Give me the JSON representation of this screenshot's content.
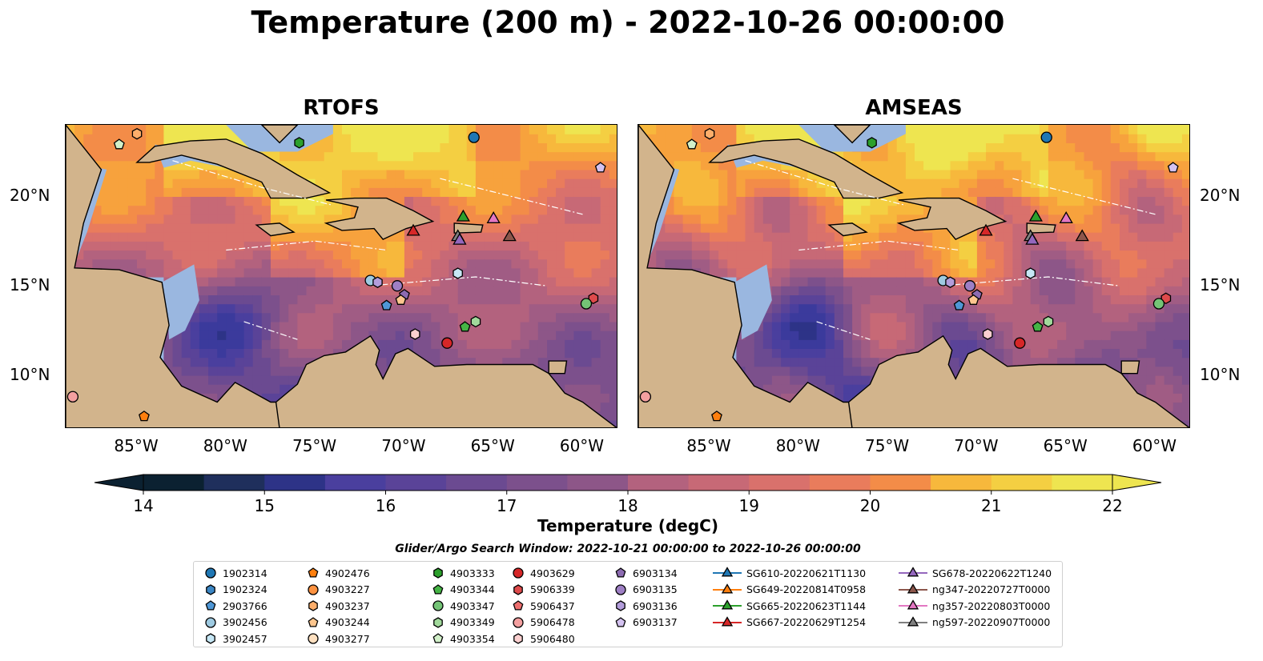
{
  "title": "Temperature (200 m) - 2022-10-26 00:00:00",
  "panels": [
    {
      "title": "RTOFS",
      "model": "rtofs"
    },
    {
      "title": "AMSEAS",
      "model": "amseas"
    }
  ],
  "axes": {
    "lon_ticks": [
      "85°W",
      "80°W",
      "75°W",
      "70°W",
      "65°W",
      "60°W"
    ],
    "lat_ticks": [
      "20°N",
      "15°N",
      "10°N"
    ],
    "extent": {
      "lon": [
        -89,
        -58
      ],
      "lat": [
        7,
        24
      ]
    }
  },
  "colorbar": {
    "label": "Temperature (degC)",
    "ticks": [
      "14",
      "15",
      "16",
      "17",
      "18",
      "19",
      "20",
      "21",
      "22"
    ],
    "range": [
      14,
      22
    ],
    "colors": [
      "#0b2131",
      "#1f2f5c",
      "#2d3387",
      "#3b3a9c",
      "#4a3f9e",
      "#5a4398",
      "#6b4a91",
      "#7c508c",
      "#8d5688",
      "#a05c84",
      "#b3627e",
      "#c76976",
      "#d9716c",
      "#e97c5c",
      "#f38c48",
      "#f7a23d",
      "#f7b83c",
      "#f4cf42",
      "#eee550"
    ]
  },
  "legend": {
    "title": "Glider/Argo Search Window: 2022-10-21 00:00:00 to 2022-10-26 00:00:00",
    "columns": [
      [
        {
          "label": "1902314",
          "marker": "circle",
          "color": "#1f77b4"
        },
        {
          "label": "1902324",
          "marker": "hexagon",
          "color": "#3b86c4"
        },
        {
          "label": "2903766",
          "marker": "pentagon",
          "color": "#4f97d6"
        },
        {
          "label": "3902456",
          "marker": "circle",
          "color": "#9ecae1"
        },
        {
          "label": "3902457",
          "marker": "hexagon",
          "color": "#c6e7f5"
        }
      ],
      [
        {
          "label": "4902476",
          "marker": "pentagon",
          "color": "#ff7f0e"
        },
        {
          "label": "4903227",
          "marker": "circle",
          "color": "#fd9240"
        },
        {
          "label": "4903237",
          "marker": "hexagon",
          "color": "#fdae6b"
        },
        {
          "label": "4903244",
          "marker": "pentagon",
          "color": "#fdc68e"
        },
        {
          "label": "4903277",
          "marker": "circle",
          "color": "#fee0c0"
        }
      ],
      [
        {
          "label": "4903333",
          "marker": "hexagon",
          "color": "#2ca02c"
        },
        {
          "label": "4903344",
          "marker": "pentagon",
          "color": "#45b445"
        },
        {
          "label": "4903347",
          "marker": "circle",
          "color": "#74c476"
        },
        {
          "label": "4903349",
          "marker": "hexagon",
          "color": "#a1d99b"
        },
        {
          "label": "4903354",
          "marker": "pentagon",
          "color": "#d2f0c9"
        }
      ],
      [
        {
          "label": "4903629",
          "marker": "circle",
          "color": "#d62728"
        },
        {
          "label": "5906339",
          "marker": "hexagon",
          "color": "#de4a4b"
        },
        {
          "label": "5906437",
          "marker": "pentagon",
          "color": "#ec6e6e"
        },
        {
          "label": "5906478",
          "marker": "circle",
          "color": "#f4a0a0"
        },
        {
          "label": "5906480",
          "marker": "hexagon",
          "color": "#fbd0d0"
        }
      ],
      [
        {
          "label": "6903134",
          "marker": "pentagon",
          "color": "#8c6bb1"
        },
        {
          "label": "6903135",
          "marker": "circle",
          "color": "#9e7fc4"
        },
        {
          "label": "6903136",
          "marker": "hexagon",
          "color": "#b39ddb"
        },
        {
          "label": "6903137",
          "marker": "pentagon",
          "color": "#d4c2f0"
        }
      ],
      [
        {
          "label": "SG610-20220621T1130",
          "marker": "triangle",
          "color": "#1f77b4"
        },
        {
          "label": "SG649-20220814T0958",
          "marker": "triangle",
          "color": "#ff7f0e"
        },
        {
          "label": "SG665-20220623T1144",
          "marker": "triangle",
          "color": "#2ca02c"
        },
        {
          "label": "SG667-20220629T1254",
          "marker": "triangle",
          "color": "#d62728"
        }
      ],
      [
        {
          "label": "SG678-20220622T1240",
          "marker": "triangle",
          "color": "#9467bd"
        },
        {
          "label": "ng347-20220727T0000",
          "marker": "triangle",
          "color": "#8c564b"
        },
        {
          "label": "ng357-20220803T0000",
          "marker": "triangle",
          "color": "#e377c2"
        },
        {
          "label": "ng597-20220907T0000",
          "marker": "triangle",
          "color": "#7f7f7f"
        }
      ]
    ]
  },
  "chart_data": {
    "type": "heatmap",
    "variable": "Temperature (degC)",
    "depth": "200 m",
    "time": "2022-10-26 00:00:00",
    "lon_range": [
      -89,
      -58
    ],
    "lat_range": [
      7,
      24
    ],
    "value_range": [
      14,
      22
    ],
    "models": [
      "RTOFS",
      "AMSEAS"
    ],
    "argo_floats": [
      {
        "id": "1902314",
        "lon": -66.1,
        "lat": 23.3
      },
      {
        "id": "4903354",
        "lon": -86.0,
        "lat": 22.9
      },
      {
        "id": "4903237",
        "lon": -85.0,
        "lat": 23.5
      },
      {
        "id": "4903333",
        "lon": -75.9,
        "lat": 23.0
      },
      {
        "id": "6903137",
        "lon": -59.0,
        "lat": 21.6
      },
      {
        "id": "3902457",
        "lon": -67.0,
        "lat": 15.7
      },
      {
        "id": "3902456",
        "lon": -71.9,
        "lat": 15.3
      },
      {
        "id": "6903136",
        "lon": -71.5,
        "lat": 15.2
      },
      {
        "id": "6903135",
        "lon": -70.4,
        "lat": 15.0
      },
      {
        "id": "6903134",
        "lon": -70.0,
        "lat": 14.5
      },
      {
        "id": "4903244",
        "lon": -70.2,
        "lat": 14.2
      },
      {
        "id": "2903766",
        "lon": -71.0,
        "lat": 13.9
      },
      {
        "id": "5906339",
        "lon": -59.4,
        "lat": 14.3
      },
      {
        "id": "4903347",
        "lon": -59.8,
        "lat": 14.0
      },
      {
        "id": "4903349",
        "lon": -66.0,
        "lat": 13.0
      },
      {
        "id": "4903344",
        "lon": -66.6,
        "lat": 12.7
      },
      {
        "id": "5906480",
        "lon": -69.4,
        "lat": 12.3
      },
      {
        "id": "4903629",
        "lon": -67.6,
        "lat": 11.8
      },
      {
        "id": "5906478",
        "lon": -88.6,
        "lat": 8.8
      },
      {
        "id": "4902476",
        "lon": -84.6,
        "lat": 7.7
      }
    ],
    "gliders": [
      {
        "id": "SG665-20220623T1144",
        "lon": -66.7,
        "lat": 18.9
      },
      {
        "id": "ng357-20220803T0000",
        "lon": -65.0,
        "lat": 18.8
      },
      {
        "id": "SG667-20220629T1254",
        "lon": -69.5,
        "lat": 18.1
      },
      {
        "id": "ng347-20220727T0000",
        "lon": -64.1,
        "lat": 17.8
      },
      {
        "id": "ng597-20220907T0000",
        "lon": -67.0,
        "lat": 17.8
      },
      {
        "id": "SG678-20220622T1240",
        "lon": -66.9,
        "lat": 17.6
      }
    ]
  }
}
